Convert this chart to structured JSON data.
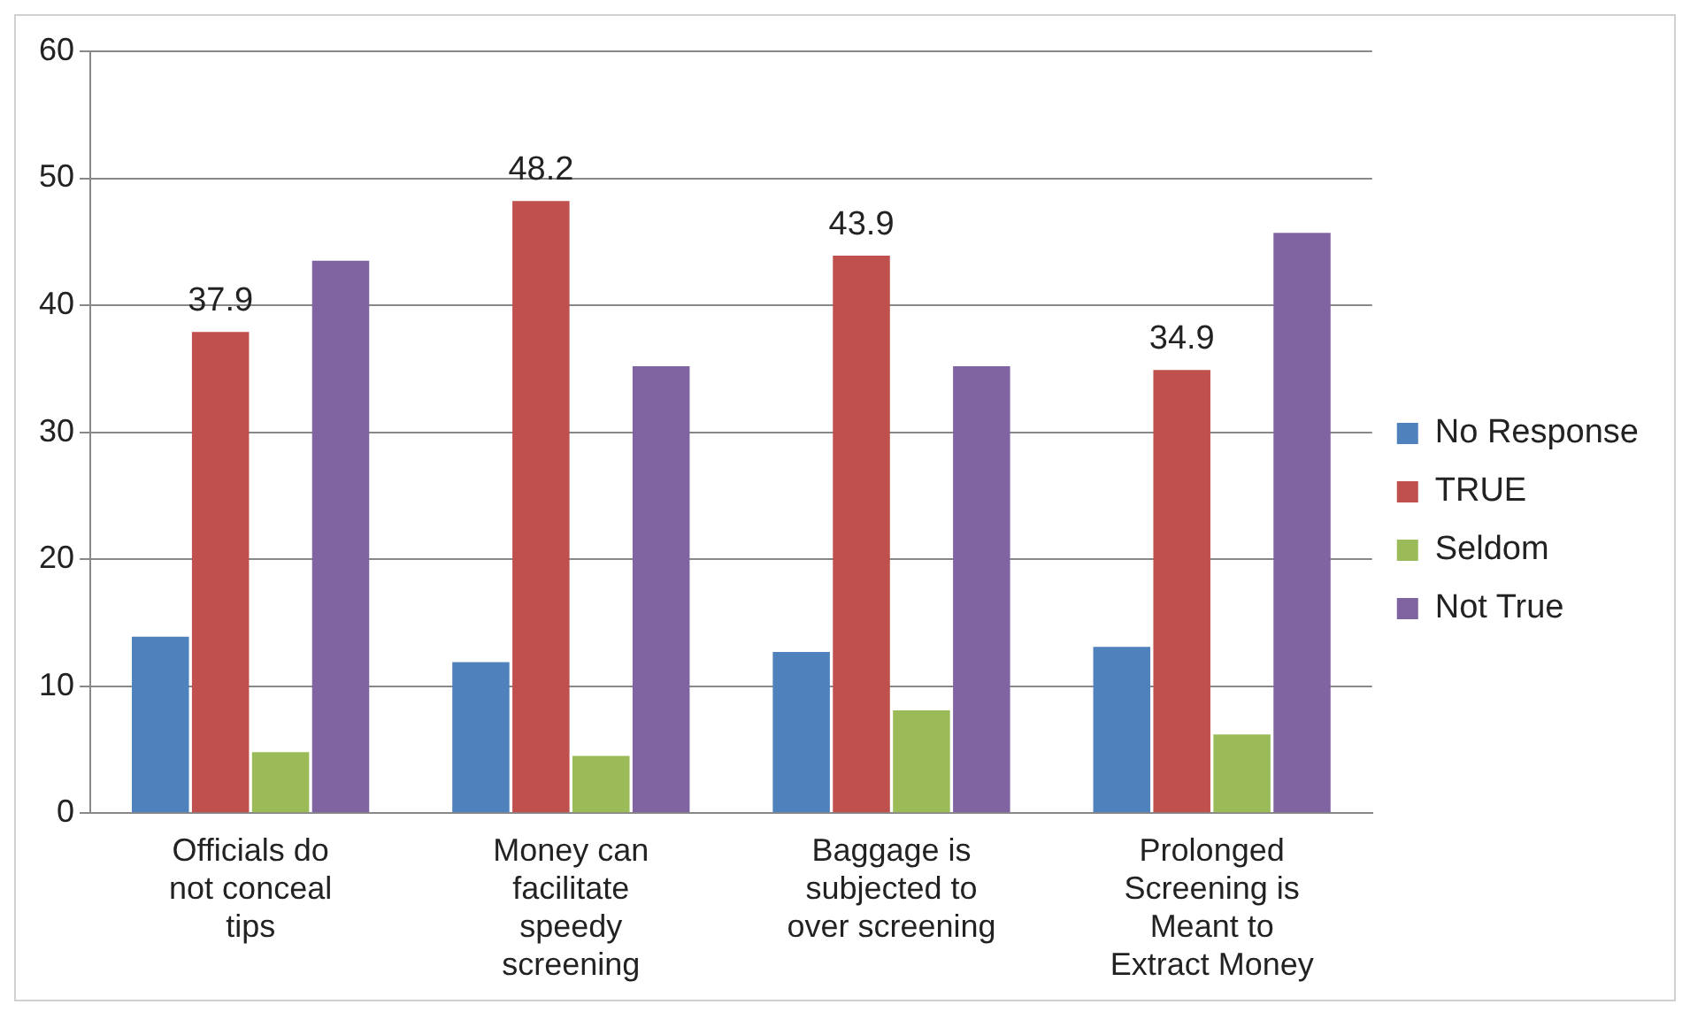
{
  "chart_data": {
    "type": "bar",
    "categories": [
      "Officials do not conceal tips",
      "Money can facilitate speedy screening",
      "Baggage is subjected to over screening",
      "Prolonged Screening is Meant to Extract Money"
    ],
    "series": [
      {
        "name": "No Response",
        "color": "#4f81bd",
        "values": [
          13.9,
          11.9,
          12.7,
          13.1
        ]
      },
      {
        "name": "TRUE",
        "color": "#c0504d",
        "values": [
          37.9,
          48.2,
          43.9,
          34.9
        ],
        "value_labels": [
          "37.9",
          "48.2",
          "43.9",
          "34.9"
        ]
      },
      {
        "name": "Seldom",
        "color": "#9bbb59",
        "values": [
          4.8,
          4.5,
          8.1,
          6.2
        ]
      },
      {
        "name": "Not True",
        "color": "#8064a2",
        "values": [
          43.5,
          35.2,
          35.2,
          45.7
        ]
      }
    ],
    "ylim": [
      0,
      60
    ],
    "yticks": [
      0,
      10,
      20,
      30,
      40,
      50,
      60
    ],
    "grid": "y",
    "legend": "right"
  }
}
